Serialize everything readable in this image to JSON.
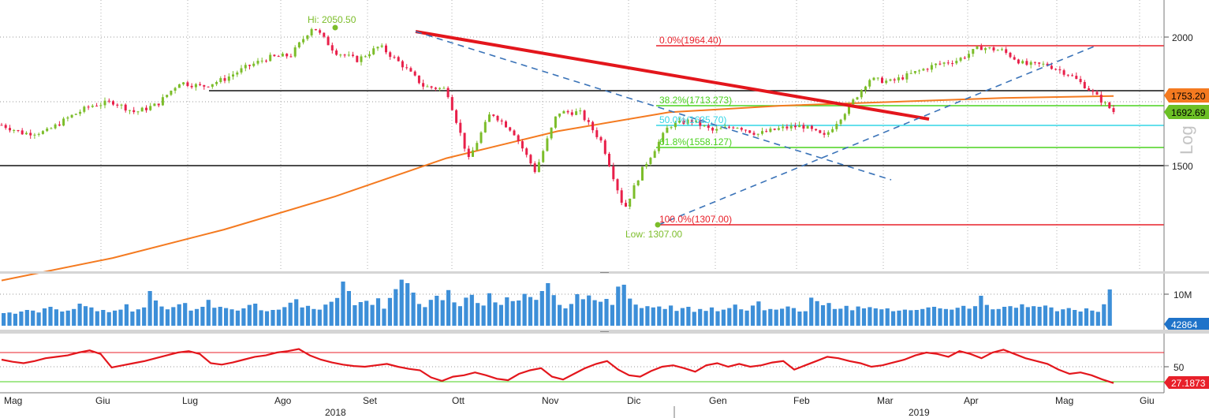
{
  "chart_data": {
    "type": "candlestick",
    "scale": "Log",
    "annotations": {
      "high": "Hi: 2050.50",
      "low": "Low: 1307.00",
      "fib": [
        {
          "label": "0.0%(1964.40)",
          "value": 1964.4,
          "color": "#e8202a"
        },
        {
          "label": "38.2%(1713.273)",
          "value": 1713.273,
          "color": "#4ad21e"
        },
        {
          "label": "50.0%(1635.70)",
          "value": 1635.7,
          "color": "#34d5e6"
        },
        {
          "label": "61.8%(1558.127)",
          "value": 1558.127,
          "color": "#4ad21e"
        },
        {
          "label": "100.0%(1307.00)",
          "value": 1307.0,
          "color": "#e8202a"
        }
      ]
    },
    "price_panel": {
      "y_ticks": [
        {
          "label": "2000",
          "value": 2000
        },
        {
          "label": "1500",
          "value": 1500
        }
      ],
      "badges": [
        {
          "label": "1753.20",
          "value": 1753.2,
          "color": "#f47a20"
        },
        {
          "label": "1692.69",
          "value": 1692.69,
          "color": "#6cc025"
        }
      ],
      "horizontal_lines": [
        1753.2,
        1500
      ],
      "ma200": [
        {
          "x": 0,
          "y": 1160
        },
        {
          "x": 0.1,
          "y": 1220
        },
        {
          "x": 0.2,
          "y": 1300
        },
        {
          "x": 0.3,
          "y": 1400
        },
        {
          "x": 0.4,
          "y": 1525
        },
        {
          "x": 0.5,
          "y": 1620
        },
        {
          "x": 0.6,
          "y": 1690
        },
        {
          "x": 0.7,
          "y": 1715
        },
        {
          "x": 0.8,
          "y": 1730
        },
        {
          "x": 0.9,
          "y": 1745
        },
        {
          "x": 1.0,
          "y": 1753
        }
      ],
      "close": [
        {
          "x": 0.0,
          "y": 1643
        },
        {
          "x": 0.02,
          "y": 1612
        },
        {
          "x": 0.04,
          "y": 1618
        },
        {
          "x": 0.06,
          "y": 1670
        },
        {
          "x": 0.08,
          "y": 1715
        },
        {
          "x": 0.1,
          "y": 1730
        },
        {
          "x": 0.12,
          "y": 1690
        },
        {
          "x": 0.14,
          "y": 1720
        },
        {
          "x": 0.16,
          "y": 1808
        },
        {
          "x": 0.18,
          "y": 1790
        },
        {
          "x": 0.2,
          "y": 1820
        },
        {
          "x": 0.22,
          "y": 1870
        },
        {
          "x": 0.24,
          "y": 1910
        },
        {
          "x": 0.26,
          "y": 1920
        },
        {
          "x": 0.28,
          "y": 2050
        },
        {
          "x": 0.3,
          "y": 1935
        },
        {
          "x": 0.32,
          "y": 1900
        },
        {
          "x": 0.34,
          "y": 1960
        },
        {
          "x": 0.36,
          "y": 1880
        },
        {
          "x": 0.38,
          "y": 1790
        },
        {
          "x": 0.4,
          "y": 1780
        },
        {
          "x": 0.42,
          "y": 1520
        },
        {
          "x": 0.44,
          "y": 1690
        },
        {
          "x": 0.46,
          "y": 1620
        },
        {
          "x": 0.48,
          "y": 1480
        },
        {
          "x": 0.5,
          "y": 1690
        },
        {
          "x": 0.52,
          "y": 1690
        },
        {
          "x": 0.54,
          "y": 1580
        },
        {
          "x": 0.56,
          "y": 1360
        },
        {
          "x": 0.575,
          "y": 1480
        },
        {
          "x": 0.6,
          "y": 1640
        },
        {
          "x": 0.62,
          "y": 1660
        },
        {
          "x": 0.64,
          "y": 1620
        },
        {
          "x": 0.66,
          "y": 1640
        },
        {
          "x": 0.68,
          "y": 1610
        },
        {
          "x": 0.7,
          "y": 1630
        },
        {
          "x": 0.72,
          "y": 1640
        },
        {
          "x": 0.74,
          "y": 1600
        },
        {
          "x": 0.76,
          "y": 1700
        },
        {
          "x": 0.78,
          "y": 1820
        },
        {
          "x": 0.8,
          "y": 1810
        },
        {
          "x": 0.82,
          "y": 1845
        },
        {
          "x": 0.84,
          "y": 1880
        },
        {
          "x": 0.86,
          "y": 1900
        },
        {
          "x": 0.88,
          "y": 1955
        },
        {
          "x": 0.9,
          "y": 1940
        },
        {
          "x": 0.92,
          "y": 1880
        },
        {
          "x": 0.94,
          "y": 1880
        },
        {
          "x": 0.96,
          "y": 1840
        },
        {
          "x": 0.975,
          "y": 1790
        },
        {
          "x": 1.0,
          "y": 1692.69
        }
      ]
    },
    "volume_panel": {
      "y_ticks": [
        {
          "label": "10M",
          "value": 10
        }
      ],
      "badge": {
        "label": "42864",
        "color": "#1f73c9"
      },
      "values_m": [
        4,
        4.2,
        3.8,
        4.5,
        5,
        4.8,
        4.2,
        5.5,
        6,
        5.2,
        4.5,
        4.8,
        5.3,
        7,
        6.2,
        5.8,
        4.6,
        5,
        4.3,
        4.8,
        5.1,
        6.8,
        4.5,
        5.2,
        5.8,
        11,
        8,
        6.1,
        5.2,
        5.9,
        6.8,
        7.2,
        4.8,
        5.3,
        6,
        8.2,
        5.7,
        6,
        5.6,
        5.2,
        4.8,
        5.5,
        6.6,
        7,
        4.9,
        4.6,
        5,
        5.1,
        5.9,
        7.3,
        8.4,
        5.8,
        6.3,
        5.3,
        5.1,
        6.7,
        7.6,
        8.8,
        14,
        11,
        6.5,
        7.5,
        7.9,
        6.6,
        8.7,
        5.4,
        8.8,
        11.6,
        14.6,
        13.5,
        10.5,
        6.9,
        5.9,
        8.2,
        9.5,
        8.1,
        11.3,
        7.4,
        6.2,
        8.9,
        9.8,
        7.2,
        6.4,
        10.3,
        7.4,
        6.6,
        9,
        7.8,
        8,
        10.1,
        9.1,
        8.2,
        11,
        13.5,
        9.7,
        6.6,
        5.5,
        6.9,
        10,
        8.4,
        9.6,
        8.1,
        7.6,
        8.5,
        6.6,
        12.4,
        13,
        8.6,
        6.7,
        5.6,
        6.2,
        5.8,
        6.1,
        5.3,
        6.4,
        4.7,
        5.6,
        6,
        4.4,
        5.3,
        4.7,
        5.8,
        4.6,
        5.1,
        5.6,
        6.7,
        5.2,
        4.8,
        6.4,
        7.7,
        4.9,
        5.3,
        5.1,
        5.4,
        6.1,
        5.6,
        4.5,
        4.6,
        8.9,
        7.8,
        6.5,
        7.2,
        5.3,
        5.4,
        6.3,
        4.9,
        6.1,
        5.5,
        5.9,
        5.5,
        5.2,
        5.5,
        4.6,
        4.8,
        5.1,
        4.9,
        5,
        5.3,
        5.8,
        6,
        5.5,
        5.3,
        5.1,
        5.7,
        6.3,
        5.4,
        6.2,
        9.5,
        6.6,
        5.2,
        5.3,
        6,
        6.2,
        5.7,
        6.8,
        5.9,
        6.2,
        6,
        6.4,
        5.8,
        4.6,
        5.2,
        5.6,
        5,
        4.5,
        5.5,
        4.8,
        4.4,
        6.8,
        11.5
      ]
    },
    "rsi_panel": {
      "y_ticks": [
        {
          "label": "50",
          "value": 50
        }
      ],
      "upper": 70,
      "lower": 30,
      "badge": {
        "label": "27.1873",
        "color": "#e8202a"
      },
      "values": [
        60,
        57,
        55,
        58,
        62,
        64,
        66,
        70,
        73,
        68,
        49,
        52,
        55,
        58,
        62,
        66,
        70,
        72,
        68,
        55,
        53,
        56,
        60,
        64,
        66,
        70,
        72,
        75,
        66,
        60,
        56,
        53,
        51,
        50,
        52,
        54,
        50,
        47,
        45,
        35,
        30,
        36,
        38,
        42,
        38,
        33,
        31,
        40,
        45,
        48,
        36,
        32,
        40,
        48,
        54,
        58,
        46,
        38,
        36,
        44,
        50,
        52,
        48,
        43,
        52,
        55,
        50,
        54,
        50,
        52,
        56,
        58,
        46,
        52,
        58,
        64,
        62,
        58,
        55,
        50,
        52,
        56,
        60,
        66,
        70,
        68,
        64,
        72,
        68,
        62,
        70,
        74,
        68,
        62,
        58,
        54,
        46,
        40,
        42,
        38,
        32,
        27
      ]
    },
    "x_axis": {
      "months": [
        "Mag",
        "Giu",
        "Lug",
        "Ago",
        "Set",
        "Ott",
        "Nov",
        "Dic",
        "Gen",
        "Feb",
        "Mar",
        "Apr",
        "Mag",
        "Giu"
      ],
      "years": [
        "2018",
        "2019"
      ]
    }
  }
}
